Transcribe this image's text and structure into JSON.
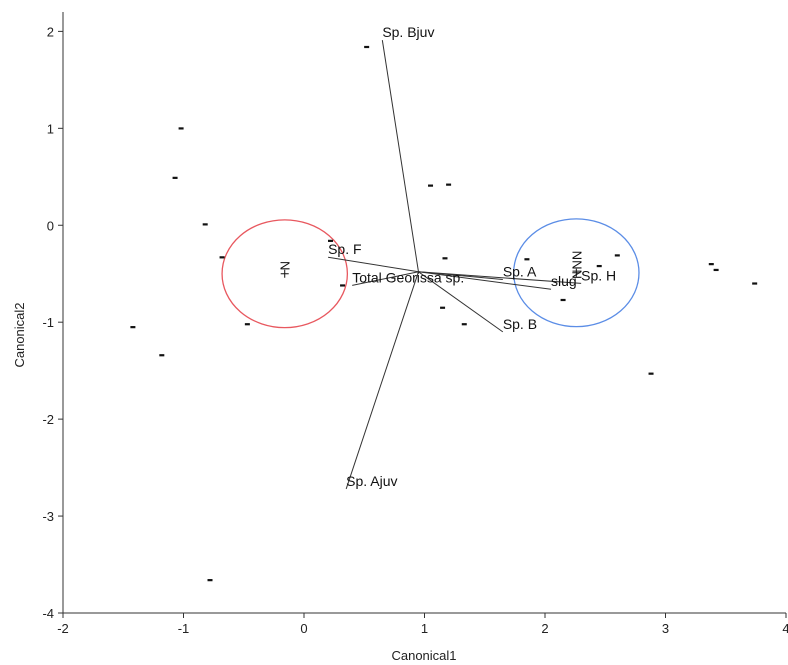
{
  "chart_data": {
    "type": "scatter",
    "title": "",
    "xlabel": "Canonical1",
    "ylabel": "Canonical2",
    "xlim": [
      -2,
      4
    ],
    "ylim": [
      -4,
      2.2
    ],
    "xticks": [
      -2,
      -1,
      0,
      1,
      2,
      3,
      4
    ],
    "yticks": [
      -4,
      -3,
      -2,
      -1,
      0,
      1,
      2
    ],
    "grid": false,
    "points": [
      {
        "x": -1.02,
        "y": 1.0
      },
      {
        "x": -1.07,
        "y": 0.49
      },
      {
        "x": -0.82,
        "y": 0.01
      },
      {
        "x": -0.68,
        "y": -0.33
      },
      {
        "x": -1.42,
        "y": -1.05
      },
      {
        "x": -1.18,
        "y": -1.34
      },
      {
        "x": -0.47,
        "y": -1.02
      },
      {
        "x": -0.78,
        "y": -3.66
      },
      {
        "x": 0.52,
        "y": 1.84
      },
      {
        "x": 1.05,
        "y": 0.41
      },
      {
        "x": 1.2,
        "y": 0.42
      },
      {
        "x": 1.17,
        "y": -0.34
      },
      {
        "x": 0.22,
        "y": -0.16
      },
      {
        "x": 0.32,
        "y": -0.62
      },
      {
        "x": 1.33,
        "y": -1.02
      },
      {
        "x": 1.15,
        "y": -0.85
      },
      {
        "x": 1.85,
        "y": -0.35
      },
      {
        "x": 2.45,
        "y": -0.42
      },
      {
        "x": 2.6,
        "y": -0.31
      },
      {
        "x": 2.15,
        "y": -0.77
      },
      {
        "x": 2.88,
        "y": -1.53
      },
      {
        "x": 3.38,
        "y": -0.4
      },
      {
        "x": 3.42,
        "y": -0.46
      },
      {
        "x": 3.74,
        "y": -0.6
      }
    ],
    "biplot_origin": {
      "x": 0.95,
      "y": -0.48
    },
    "vectors": [
      {
        "name": "Sp. Bjuv",
        "x": 0.65,
        "y": 1.91
      },
      {
        "name": "Sp. F",
        "x": 0.2,
        "y": -0.33
      },
      {
        "name": "Total Georissa sp.",
        "x": 0.4,
        "y": -0.62
      },
      {
        "name": "Sp. A",
        "x": 1.65,
        "y": -0.56
      },
      {
        "name": "slug",
        "x": 2.05,
        "y": -0.66
      },
      {
        "name": "Sp. H",
        "x": 2.3,
        "y": -0.6
      },
      {
        "name": "Sp. B",
        "x": 1.65,
        "y": -1.1
      },
      {
        "name": "Sp. Ajuv",
        "x": 0.35,
        "y": -2.72
      }
    ],
    "vector_label_offsets": [
      {
        "dx": 0,
        "dy": -3
      },
      {
        "dx": 0,
        "dy": -3
      },
      {
        "dx": 0,
        "dy": -3
      },
      {
        "dx": 0,
        "dy": -3
      },
      {
        "dx": 0,
        "dy": -3
      },
      {
        "dx": 0,
        "dy": -3
      },
      {
        "dx": 0,
        "dy": -3
      },
      {
        "dx": 0,
        "dy": -3
      }
    ],
    "group_circles": [
      {
        "label": "N",
        "cx": -0.16,
        "cy": -0.5,
        "r_x": 0.52,
        "color": "#e8585f"
      },
      {
        "label": "NNN",
        "cx": 2.26,
        "cy": -0.49,
        "r_x": 0.52,
        "color": "#5b8de6"
      }
    ],
    "centroid_marks": [
      {
        "x": -0.16,
        "y": -0.5
      },
      {
        "x": 2.26,
        "y": -0.49
      }
    ]
  }
}
